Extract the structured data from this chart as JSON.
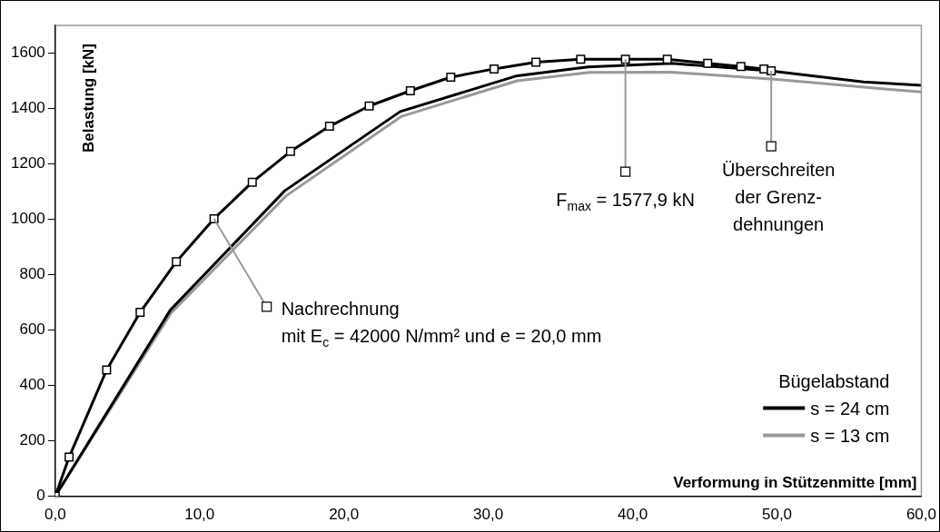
{
  "chart_data": {
    "type": "line",
    "xlabel": "Verformung in Stützenmitte [mm]",
    "ylabel": "Belastung [kN]",
    "legend_title": "Bügelabstand",
    "legend": "bottom right",
    "grid": false,
    "xlim": [
      0,
      60
    ],
    "xticks": [
      {
        "value": 0,
        "label": "0,0"
      },
      {
        "value": 10,
        "label": "10,0"
      },
      {
        "value": 20,
        "label": "20,0"
      },
      {
        "value": 30,
        "label": "30,0"
      },
      {
        "value": 40,
        "label": "40,0"
      },
      {
        "value": 50,
        "label": "50,0"
      },
      {
        "value": 60,
        "label": "60,0"
      }
    ],
    "ylim": [
      0,
      1700
    ],
    "yticks": [
      0,
      200,
      400,
      600,
      800,
      1000,
      1200,
      1400,
      1600
    ],
    "series": [
      {
        "color": "#000000",
        "marker": "square",
        "x": [
          0,
          0.96,
          3.56,
          5.88,
          8.39,
          11.0,
          13.65,
          16.3,
          19.0,
          21.75,
          24.6,
          27.4,
          30.4,
          33.3,
          36.4,
          39.5,
          42.4,
          45.2,
          47.5,
          49.1,
          49.6
        ],
        "values": [
          0,
          141,
          456,
          664,
          847,
          1002,
          1134,
          1245,
          1336,
          1409,
          1464,
          1513,
          1543,
          1567,
          1578,
          1578,
          1578,
          1563,
          1552,
          1543,
          1536
        ]
      },
      {
        "name": "s = 24 cm",
        "color": "#000000",
        "marker": "none",
        "x": [
          0,
          7.97,
          15.9,
          23.9,
          31.9,
          36.9,
          42.7,
          49.5,
          56,
          60
        ],
        "values": [
          0,
          672,
          1103,
          1389,
          1517,
          1550,
          1563,
          1536,
          1496,
          1484
        ]
      },
      {
        "name": "s = 13 cm",
        "color": "#999999",
        "marker": "none",
        "x": [
          0,
          8,
          16,
          24,
          32,
          37,
          42.7,
          50,
          58,
          60
        ],
        "values": [
          0,
          660,
          1085,
          1372,
          1500,
          1530,
          1531,
          1505,
          1468,
          1460
        ]
      }
    ],
    "annotations": [
      {
        "text": "F$_{max}$ = 1577,9 kN",
        "x": 39.5,
        "y": 1578
      },
      {
        "text": "Überschreiten\nder Grenz-\ndehnungen",
        "x": 49.6,
        "y": 1536
      },
      {
        "text": "Nachrechnung\nmit E$_{c}$ = 42000 N/mm² und e = 20,0 mm",
        "x": 11.0,
        "y": 1002
      }
    ]
  }
}
